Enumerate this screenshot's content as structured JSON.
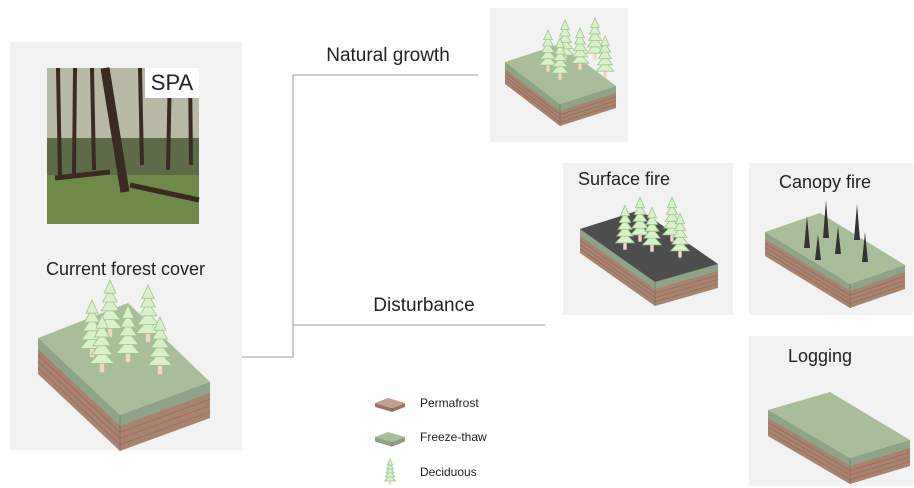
{
  "photo_label": "SPA",
  "current": {
    "title": "Current forest cover"
  },
  "branches": {
    "natural": "Natural growth",
    "disturbance": "Disturbance"
  },
  "outcomes": {
    "surface_fire": "Surface fire",
    "canopy_fire": "Canopy fire",
    "logging": "Logging"
  },
  "legend": {
    "permafrost": "Permafrost",
    "freeze_thaw": "Freeze-thaw",
    "deciduous": "Deciduous"
  }
}
